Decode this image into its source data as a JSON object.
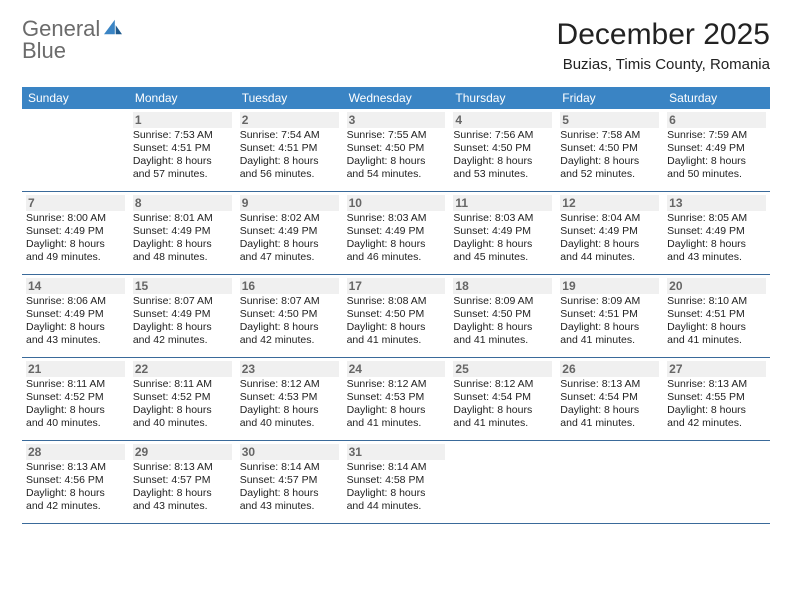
{
  "logo": {
    "word1": "General",
    "word2": "Blue"
  },
  "title": "December 2025",
  "location": "Buzias, Timis County, Romania",
  "colors": {
    "header_bg": "#3a84c4",
    "row_border": "#3a6a9a",
    "logo_gray": "#6b6b6b",
    "logo_blue": "#3a84c4",
    "daynum_bg": "#f0f0f0",
    "text": "#222222"
  },
  "day_names": [
    "Sunday",
    "Monday",
    "Tuesday",
    "Wednesday",
    "Thursday",
    "Friday",
    "Saturday"
  ],
  "weeks": [
    [
      null,
      {
        "n": "1",
        "sr": "7:53 AM",
        "ss": "4:51 PM",
        "dl": "8 hours and 57 minutes."
      },
      {
        "n": "2",
        "sr": "7:54 AM",
        "ss": "4:51 PM",
        "dl": "8 hours and 56 minutes."
      },
      {
        "n": "3",
        "sr": "7:55 AM",
        "ss": "4:50 PM",
        "dl": "8 hours and 54 minutes."
      },
      {
        "n": "4",
        "sr": "7:56 AM",
        "ss": "4:50 PM",
        "dl": "8 hours and 53 minutes."
      },
      {
        "n": "5",
        "sr": "7:58 AM",
        "ss": "4:50 PM",
        "dl": "8 hours and 52 minutes."
      },
      {
        "n": "6",
        "sr": "7:59 AM",
        "ss": "4:49 PM",
        "dl": "8 hours and 50 minutes."
      }
    ],
    [
      {
        "n": "7",
        "sr": "8:00 AM",
        "ss": "4:49 PM",
        "dl": "8 hours and 49 minutes."
      },
      {
        "n": "8",
        "sr": "8:01 AM",
        "ss": "4:49 PM",
        "dl": "8 hours and 48 minutes."
      },
      {
        "n": "9",
        "sr": "8:02 AM",
        "ss": "4:49 PM",
        "dl": "8 hours and 47 minutes."
      },
      {
        "n": "10",
        "sr": "8:03 AM",
        "ss": "4:49 PM",
        "dl": "8 hours and 46 minutes."
      },
      {
        "n": "11",
        "sr": "8:03 AM",
        "ss": "4:49 PM",
        "dl": "8 hours and 45 minutes."
      },
      {
        "n": "12",
        "sr": "8:04 AM",
        "ss": "4:49 PM",
        "dl": "8 hours and 44 minutes."
      },
      {
        "n": "13",
        "sr": "8:05 AM",
        "ss": "4:49 PM",
        "dl": "8 hours and 43 minutes."
      }
    ],
    [
      {
        "n": "14",
        "sr": "8:06 AM",
        "ss": "4:49 PM",
        "dl": "8 hours and 43 minutes."
      },
      {
        "n": "15",
        "sr": "8:07 AM",
        "ss": "4:49 PM",
        "dl": "8 hours and 42 minutes."
      },
      {
        "n": "16",
        "sr": "8:07 AM",
        "ss": "4:50 PM",
        "dl": "8 hours and 42 minutes."
      },
      {
        "n": "17",
        "sr": "8:08 AM",
        "ss": "4:50 PM",
        "dl": "8 hours and 41 minutes."
      },
      {
        "n": "18",
        "sr": "8:09 AM",
        "ss": "4:50 PM",
        "dl": "8 hours and 41 minutes."
      },
      {
        "n": "19",
        "sr": "8:09 AM",
        "ss": "4:51 PM",
        "dl": "8 hours and 41 minutes."
      },
      {
        "n": "20",
        "sr": "8:10 AM",
        "ss": "4:51 PM",
        "dl": "8 hours and 41 minutes."
      }
    ],
    [
      {
        "n": "21",
        "sr": "8:11 AM",
        "ss": "4:52 PM",
        "dl": "8 hours and 40 minutes."
      },
      {
        "n": "22",
        "sr": "8:11 AM",
        "ss": "4:52 PM",
        "dl": "8 hours and 40 minutes."
      },
      {
        "n": "23",
        "sr": "8:12 AM",
        "ss": "4:53 PM",
        "dl": "8 hours and 40 minutes."
      },
      {
        "n": "24",
        "sr": "8:12 AM",
        "ss": "4:53 PM",
        "dl": "8 hours and 41 minutes."
      },
      {
        "n": "25",
        "sr": "8:12 AM",
        "ss": "4:54 PM",
        "dl": "8 hours and 41 minutes."
      },
      {
        "n": "26",
        "sr": "8:13 AM",
        "ss": "4:54 PM",
        "dl": "8 hours and 41 minutes."
      },
      {
        "n": "27",
        "sr": "8:13 AM",
        "ss": "4:55 PM",
        "dl": "8 hours and 42 minutes."
      }
    ],
    [
      {
        "n": "28",
        "sr": "8:13 AM",
        "ss": "4:56 PM",
        "dl": "8 hours and 42 minutes."
      },
      {
        "n": "29",
        "sr": "8:13 AM",
        "ss": "4:57 PM",
        "dl": "8 hours and 43 minutes."
      },
      {
        "n": "30",
        "sr": "8:14 AM",
        "ss": "4:57 PM",
        "dl": "8 hours and 43 minutes."
      },
      {
        "n": "31",
        "sr": "8:14 AM",
        "ss": "4:58 PM",
        "dl": "8 hours and 44 minutes."
      },
      null,
      null,
      null
    ]
  ],
  "labels": {
    "sunrise": "Sunrise: ",
    "sunset": "Sunset: ",
    "daylight": "Daylight: "
  }
}
